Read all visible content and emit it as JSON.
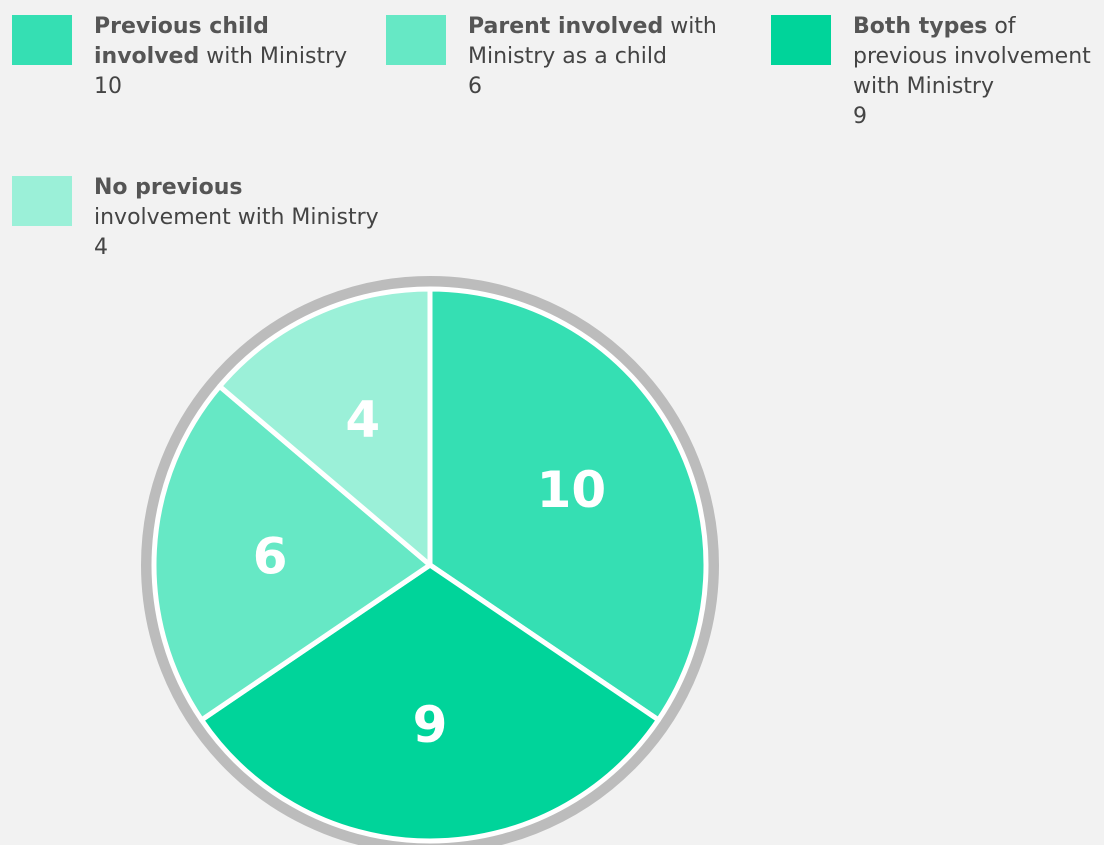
{
  "chart_data": {
    "type": "pie",
    "categories": [
      {
        "strong": "Previous child involved",
        "rest": "with Ministry"
      },
      {
        "strong": "Both types",
        "rest": "of previous involvement with Ministry"
      },
      {
        "strong": "Parent involved",
        "rest": "with Ministry as a child"
      },
      {
        "strong": "No previous",
        "rest": "involvement with Ministry"
      }
    ],
    "values": [
      10,
      9,
      6,
      4
    ],
    "colors": [
      "#35dfb3",
      "#00d49a",
      "#66e8c5",
      "#9bf0d8"
    ]
  }
}
